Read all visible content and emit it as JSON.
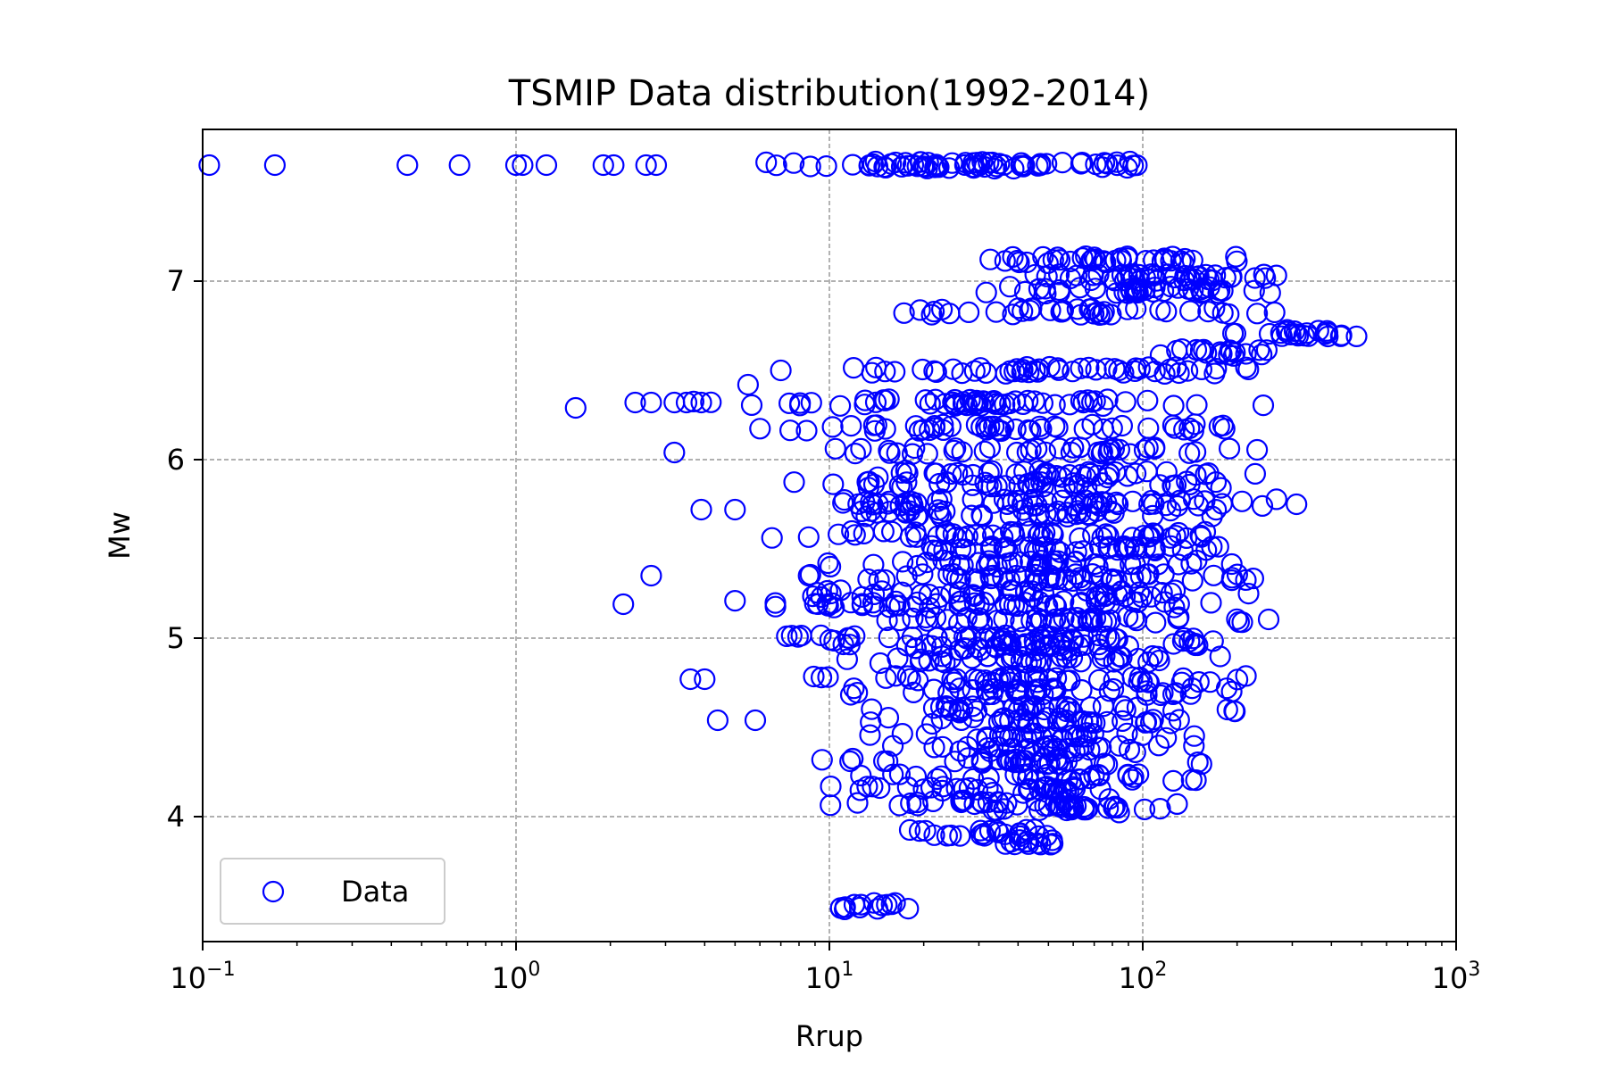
{
  "chart_data": {
    "type": "scatter",
    "title": "TSMIP Data distribution(1992-2014)",
    "xlabel": "Rrup",
    "ylabel": "Mw",
    "x_scale": "log",
    "xlim": [
      0.1,
      1000
    ],
    "ylim": [
      3.3,
      7.85
    ],
    "grid": true,
    "legend_position": "lower-left",
    "colors": {
      "marker": "#0000ff",
      "grid": "#808080"
    },
    "x_ticks": [
      {
        "value": 0.1,
        "base": "10",
        "exp": "−1"
      },
      {
        "value": 1,
        "base": "10",
        "exp": "0"
      },
      {
        "value": 10,
        "base": "10",
        "exp": "1"
      },
      {
        "value": 100,
        "base": "10",
        "exp": "2"
      },
      {
        "value": 1000,
        "base": "10",
        "exp": "3"
      }
    ],
    "y_ticks": [
      {
        "value": 4,
        "label": "4"
      },
      {
        "value": 5,
        "label": "5"
      },
      {
        "value": 6,
        "label": "6"
      },
      {
        "value": 7,
        "label": "7"
      }
    ],
    "series": [
      {
        "name": "Data",
        "marker": "open-circle",
        "bands": [
          {
            "mw": 7.65,
            "xmin": 4.2,
            "xmax": 175,
            "n": 70
          },
          {
            "mw": 7.12,
            "xmin": 27,
            "xmax": 240,
            "n": 38
          },
          {
            "mw": 7.02,
            "xmin": 35,
            "xmax": 370,
            "n": 42
          },
          {
            "mw": 6.95,
            "xmin": 25,
            "xmax": 360,
            "n": 40
          },
          {
            "mw": 6.83,
            "xmin": 14.5,
            "xmax": 280,
            "n": 40
          },
          {
            "mw": 6.71,
            "xmin": 170,
            "xmax": 560,
            "n": 22
          },
          {
            "mw": 6.6,
            "xmin": 110,
            "xmax": 300,
            "n": 18
          },
          {
            "mw": 6.5,
            "xmin": 7,
            "xmax": 320,
            "n": 50
          },
          {
            "mw": 6.32,
            "xmin": 2.5,
            "xmax": 340,
            "n": 60
          },
          {
            "mw": 6.18,
            "xmin": 5,
            "xmax": 300,
            "n": 50
          },
          {
            "mw": 6.05,
            "xmin": 9,
            "xmax": 260,
            "n": 40
          },
          {
            "mw": 5.92,
            "xmin": 10,
            "xmax": 280,
            "n": 40
          },
          {
            "mw": 5.86,
            "xmin": 7,
            "xmax": 240,
            "n": 40
          },
          {
            "mw": 5.76,
            "xmin": 5.5,
            "xmax": 410,
            "n": 55
          },
          {
            "mw": 5.7,
            "xmin": 7,
            "xmax": 250,
            "n": 40
          },
          {
            "mw": 5.58,
            "xmin": 5,
            "xmax": 260,
            "n": 50
          },
          {
            "mw": 5.5,
            "xmin": 11,
            "xmax": 250,
            "n": 40
          },
          {
            "mw": 5.42,
            "xmin": 10,
            "xmax": 240,
            "n": 40
          },
          {
            "mw": 5.34,
            "xmin": 7,
            "xmax": 330,
            "n": 50
          },
          {
            "mw": 5.25,
            "xmin": 6,
            "xmax": 250,
            "n": 45
          },
          {
            "mw": 5.19,
            "xmin": 4,
            "xmax": 230,
            "n": 50
          },
          {
            "mw": 5.1,
            "xmin": 10,
            "xmax": 320,
            "n": 45
          },
          {
            "mw": 5.0,
            "xmin": 5.5,
            "xmax": 260,
            "n": 50
          },
          {
            "mw": 4.95,
            "xmin": 8,
            "xmax": 240,
            "n": 40
          },
          {
            "mw": 4.88,
            "xmin": 10,
            "xmax": 230,
            "n": 40
          },
          {
            "mw": 4.77,
            "xmin": 7,
            "xmax": 240,
            "n": 45
          },
          {
            "mw": 4.7,
            "xmin": 9,
            "xmax": 230,
            "n": 40
          },
          {
            "mw": 4.6,
            "xmin": 11,
            "xmax": 210,
            "n": 35
          },
          {
            "mw": 4.54,
            "xmin": 8,
            "xmax": 200,
            "n": 35
          },
          {
            "mw": 4.45,
            "xmin": 12,
            "xmax": 160,
            "n": 30
          },
          {
            "mw": 4.38,
            "xmin": 14,
            "xmax": 160,
            "n": 30
          },
          {
            "mw": 4.31,
            "xmin": 7.5,
            "xmax": 170,
            "n": 35
          },
          {
            "mw": 4.22,
            "xmin": 12,
            "xmax": 180,
            "n": 30
          },
          {
            "mw": 4.15,
            "xmin": 7.5,
            "xmax": 150,
            "n": 35
          },
          {
            "mw": 4.08,
            "xmin": 9,
            "xmax": 140,
            "n": 30
          },
          {
            "mw": 4.04,
            "xmin": 30,
            "xmax": 140,
            "n": 22
          },
          {
            "mw": 3.91,
            "xmin": 15,
            "xmax": 65,
            "n": 22
          },
          {
            "mw": 3.85,
            "xmin": 32,
            "xmax": 55,
            "n": 12
          },
          {
            "mw": 3.5,
            "xmin": 9,
            "xmax": 21,
            "n": 14
          }
        ],
        "points": [
          [
            0.105,
            7.65
          ],
          [
            0.17,
            7.65
          ],
          [
            0.45,
            7.65
          ],
          [
            0.66,
            7.65
          ],
          [
            1.0,
            7.65
          ],
          [
            1.05,
            7.65
          ],
          [
            1.25,
            7.65
          ],
          [
            1.9,
            7.65
          ],
          [
            2.05,
            7.65
          ],
          [
            2.6,
            7.65
          ],
          [
            2.8,
            7.65
          ],
          [
            1.55,
            6.29
          ],
          [
            2.4,
            6.32
          ],
          [
            2.7,
            6.32
          ],
          [
            3.2,
            6.32
          ],
          [
            3.5,
            6.32
          ],
          [
            3.9,
            6.32
          ],
          [
            3.2,
            6.04
          ],
          [
            3.9,
            5.72
          ],
          [
            2.7,
            5.35
          ],
          [
            2.2,
            5.19
          ],
          [
            3.6,
            4.77
          ],
          [
            4.0,
            4.77
          ],
          [
            4.4,
            4.54
          ],
          [
            5.8,
            4.54
          ],
          [
            5.0,
            5.72
          ],
          [
            5.5,
            6.42
          ],
          [
            7.0,
            6.5
          ],
          [
            9.9,
            5.42
          ]
        ]
      }
    ]
  }
}
